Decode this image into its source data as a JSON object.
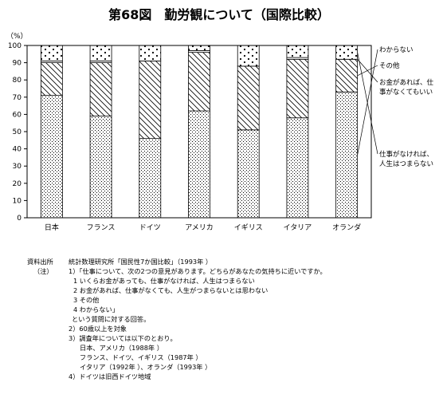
{
  "chart_data": {
    "type": "bar",
    "stacked": true,
    "title": "第68図　勤労観について（国際比較）",
    "unit_label": "（%）",
    "ylim": [
      0,
      100
    ],
    "yticks": [
      "0",
      "10",
      "20",
      "30",
      "40",
      "50",
      "60",
      "70",
      "80",
      "90",
      "100"
    ],
    "categories": [
      "日本",
      "フランス",
      "ドイツ",
      "アメリカ",
      "イギリス",
      "イタリア",
      "オランダ"
    ],
    "series": [
      {
        "name": "仕事がなければ、人生はつまらない",
        "values": [
          71,
          59,
          46,
          62,
          51,
          58,
          73
        ]
      },
      {
        "name": "お金があれば、仕事がなくてもいい",
        "values": [
          19,
          31,
          45,
          34,
          37,
          34,
          19
        ]
      },
      {
        "name": "その他",
        "values": [
          1,
          1,
          0,
          1,
          0,
          1,
          0
        ]
      },
      {
        "name": "わからない",
        "values": [
          9,
          9,
          9,
          3,
          12,
          7,
          8
        ]
      }
    ],
    "legend": {
      "placement": "right",
      "labels": [
        {
          "lines": [
            "わからない"
          ]
        },
        {
          "lines": [
            "その他"
          ]
        },
        {
          "lines": [
            "お金があれば、仕",
            "事がなくてもいい"
          ]
        },
        {
          "lines": [
            "仕事がなければ、",
            "人生はつまらない"
          ]
        }
      ]
    }
  },
  "notes": {
    "source_label": "資料出所",
    "source_text": "統計数理研究所「国民性7か国比較」（1993年 ）",
    "notes_label": "（注）",
    "n1": "1）「仕事について、次の2つの意見があります。どちらがあなたの気持ちに近いですか。",
    "n1_a": "1 いくらお金があっても、仕事がなければ、人生はつまらない",
    "n1_b": "2 お金があれば、仕事がなくても、人生がつまらないとは思わない",
    "n1_c": "3 その他",
    "n1_d": "4 わからない」",
    "n1_e": "という質問に対する回答。",
    "n2": "2）60歳以上を対象",
    "n3": "3）調査年については以下のとおり。",
    "n3_a": "日本、アメリカ（1988年 ）",
    "n3_b": "フランス、ドイツ、イギリス（1987年 ）",
    "n3_c": "イタリア（1992年 ）、オランダ（1993年 ）",
    "n4": "4）ドイツは旧西ドイツ地域"
  }
}
